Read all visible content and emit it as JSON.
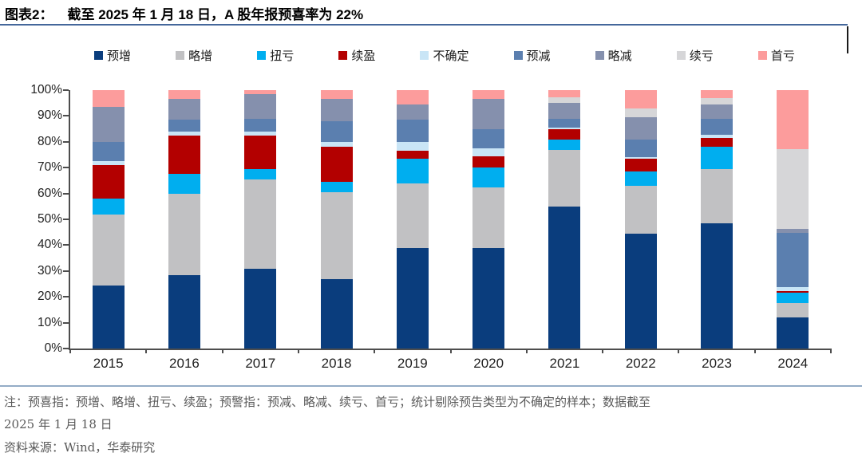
{
  "header": {
    "figure_label": "图表2：",
    "title": "截至 2025 年 1 月 18 日，A 股年报预喜率为 22%",
    "accent_line_color": "#44679B"
  },
  "separator_color": "#93ACC6",
  "cursor_artifact": true,
  "footnote": {
    "line1": "注：预喜指：预增、略增、扭亏、续盈；预警指：预减、略减、续亏、首亏；统计剔除预告类型为不确定的样本；数据截至",
    "line2": "2025 年 1 月 18 日",
    "line3": "资料来源：Wind，华泰研究"
  },
  "chart_data": {
    "type": "bar",
    "stacked": true,
    "percent_stacked": true,
    "title": "截至 2025 年 1 月 18 日，A 股年报预喜率为 22%",
    "xlabel": "",
    "ylabel": "",
    "ylim": [
      0,
      100
    ],
    "grid": false,
    "legend_position": "top",
    "y_ticks": [
      "0%",
      "10%",
      "20%",
      "30%",
      "40%",
      "50%",
      "60%",
      "70%",
      "80%",
      "90%",
      "100%"
    ],
    "categories": [
      "2015",
      "2016",
      "2017",
      "2018",
      "2019",
      "2020",
      "2021",
      "2022",
      "2023",
      "2024"
    ],
    "series": [
      {
        "name": "预增",
        "color": "#0A3D7D",
        "values": [
          24.5,
          28.5,
          31.0,
          27.0,
          39.0,
          39.0,
          55.0,
          44.5,
          48.5,
          12.0
        ]
      },
      {
        "name": "略增",
        "color": "#C1C1C3",
        "values": [
          27.5,
          31.5,
          34.5,
          33.5,
          25.0,
          23.5,
          22.0,
          18.5,
          21.0,
          5.5
        ]
      },
      {
        "name": "扭亏",
        "color": "#00AEEF",
        "values": [
          6.0,
          7.5,
          4.0,
          4.0,
          9.5,
          7.5,
          4.0,
          5.5,
          8.5,
          4.0
        ]
      },
      {
        "name": "续盈",
        "color": "#B30000",
        "values": [
          13.0,
          15.0,
          13.0,
          13.5,
          3.0,
          4.5,
          4.0,
          5.0,
          3.5,
          0.7
        ]
      },
      {
        "name": "不确定",
        "color": "#C9E5F6",
        "values": [
          1.5,
          1.5,
          1.5,
          2.0,
          3.5,
          3.0,
          0.5,
          0.5,
          1.2,
          1.5
        ]
      },
      {
        "name": "预减",
        "color": "#5B7FAF",
        "values": [
          7.5,
          4.5,
          5.0,
          8.0,
          8.5,
          7.5,
          3.5,
          7.0,
          6.3,
          21.0
        ]
      },
      {
        "name": "略减",
        "color": "#8590AD",
        "values": [
          13.5,
          8.0,
          9.5,
          8.5,
          6.0,
          11.5,
          6.2,
          8.5,
          5.5,
          1.5
        ]
      },
      {
        "name": "续亏",
        "color": "#D6D6D8",
        "values": [
          0.0,
          0.0,
          0.0,
          0.0,
          0.0,
          0.0,
          2.0,
          3.5,
          2.5,
          31.0
        ]
      },
      {
        "name": "首亏",
        "color": "#FC9C9C",
        "values": [
          6.5,
          3.5,
          1.5,
          3.5,
          5.5,
          3.5,
          2.8,
          7.0,
          3.0,
          22.8
        ]
      }
    ]
  }
}
